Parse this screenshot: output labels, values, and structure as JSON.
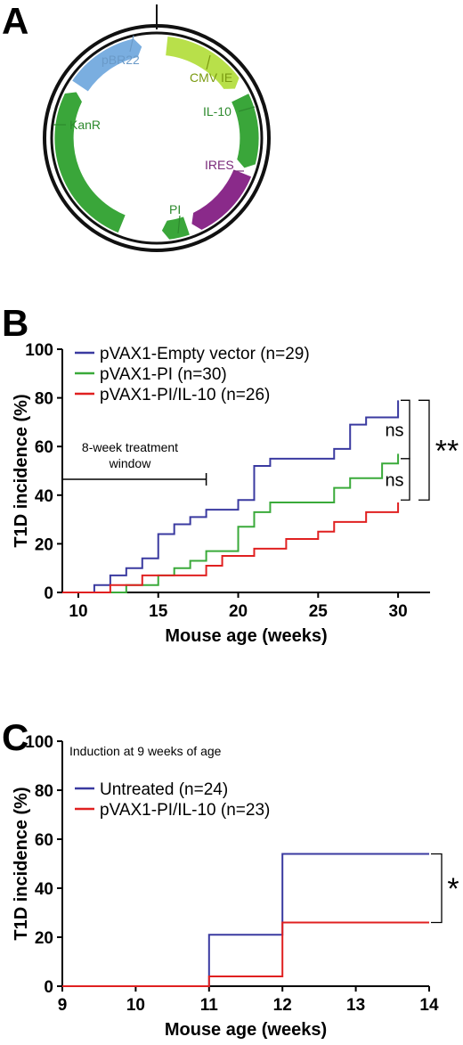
{
  "panels": {
    "a": {
      "letter": "A",
      "plasmid": {
        "colors": {
          "pbr22": "#7aaee0",
          "cmv": "#b8e04a",
          "il10": "#3aa63a",
          "ires": "#8a2a8a",
          "pi": "#3aa63a",
          "kanr": "#3aa63a",
          "pbr22_label": "#6a9ac8",
          "cmv_label": "#7a9a10",
          "green_label": "#2e8a2e",
          "ires_label": "#7a2a7a"
        },
        "features": [
          {
            "key": "pbr22",
            "label": "pBR22"
          },
          {
            "key": "cmv",
            "label": "CMV IE"
          },
          {
            "key": "il10",
            "label": "IL-10"
          },
          {
            "key": "ires",
            "label": "IRES"
          },
          {
            "key": "pi",
            "label": "PI"
          },
          {
            "key": "kanr",
            "label": "KanR"
          }
        ]
      }
    },
    "b": {
      "letter": "B",
      "window_label_line1": "8-week treatment",
      "window_label_line2": "window",
      "window_range": [
        9,
        18
      ],
      "sig": [
        {
          "label": "ns",
          "y_top": 79,
          "y_bottom": 55
        },
        {
          "label": "ns",
          "y_top": 55,
          "y_bottom": 38
        },
        {
          "label": "**",
          "y_top": 79,
          "y_bottom": 38
        }
      ]
    },
    "c": {
      "letter": "C",
      "annotation": "Induction at 9 weeks of age",
      "sig": [
        {
          "label": "*",
          "y_top": 54,
          "y_bottom": 26
        }
      ]
    }
  },
  "chart_data": [
    {
      "type": "line",
      "step": true,
      "xlabel": "Mouse age (weeks)",
      "ylabel": "T1D incidence (%)",
      "xlim": [
        9,
        32
      ],
      "ylim": [
        0,
        100
      ],
      "xticks": [
        10,
        15,
        20,
        25,
        30
      ],
      "yticks": [
        0,
        20,
        40,
        60,
        80,
        100
      ],
      "legend": "top-left",
      "series": [
        {
          "name": "pVAX1-Empty vector (n=29)",
          "color": "#3a3aa0",
          "x": [
            9,
            11,
            12,
            13,
            14,
            15,
            16,
            17,
            18,
            20,
            21,
            22,
            26,
            27,
            28,
            30
          ],
          "y": [
            0,
            3,
            7,
            10,
            14,
            24,
            28,
            31,
            34,
            38,
            52,
            55,
            59,
            69,
            72,
            79
          ]
        },
        {
          "name": "pVAX1-PI (n=30)",
          "color": "#3aaa3a",
          "x": [
            9,
            13,
            15,
            16,
            17,
            18,
            20,
            21,
            22,
            26,
            27,
            29,
            30
          ],
          "y": [
            0,
            3,
            7,
            10,
            13,
            17,
            27,
            33,
            37,
            43,
            47,
            53,
            57
          ]
        },
        {
          "name": "pVAX1-PI/IL-10 (n=26)",
          "color": "#e02020",
          "x": [
            9,
            12,
            14,
            16,
            18,
            19,
            21,
            23,
            24,
            25,
            26,
            27,
            28,
            30
          ],
          "y": [
            0,
            3,
            7,
            7,
            11,
            15,
            18,
            22,
            22,
            25,
            29,
            29,
            33,
            37
          ]
        }
      ]
    },
    {
      "type": "line",
      "step": true,
      "xlabel": "Mouse age (weeks)",
      "ylabel": "T1D incidence (%)",
      "xlim": [
        9,
        14
      ],
      "ylim": [
        0,
        100
      ],
      "xticks": [
        9,
        10,
        11,
        12,
        13,
        14
      ],
      "yticks": [
        0,
        20,
        40,
        60,
        80,
        100
      ],
      "legend": "top-left",
      "series": [
        {
          "name": "Untreated (n=24)",
          "color": "#3a3aa0",
          "x": [
            9,
            11,
            12,
            14
          ],
          "y": [
            0,
            21,
            54,
            54
          ]
        },
        {
          "name": "pVAX1-PI/IL-10 (n=23)",
          "color": "#e02020",
          "x": [
            9,
            11,
            12,
            14
          ],
          "y": [
            0,
            4,
            26,
            26
          ]
        }
      ]
    }
  ]
}
